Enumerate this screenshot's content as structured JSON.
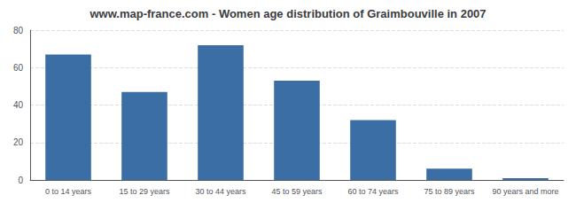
{
  "chart_data": {
    "type": "bar",
    "title": "www.map-france.com - Women age distribution of Graimbouville in 2007",
    "categories": [
      "0 to 14 years",
      "15 to 29 years",
      "30 to 44 years",
      "45 to 59 years",
      "60 to 74 years",
      "75 to 89 years",
      "90 years and more"
    ],
    "values": [
      67,
      47,
      72,
      53,
      32,
      6,
      1
    ],
    "color": "#3a6ea5",
    "ylim": [
      0,
      80
    ],
    "yticks": [
      0,
      20,
      40,
      60,
      80
    ],
    "grid": true
  }
}
